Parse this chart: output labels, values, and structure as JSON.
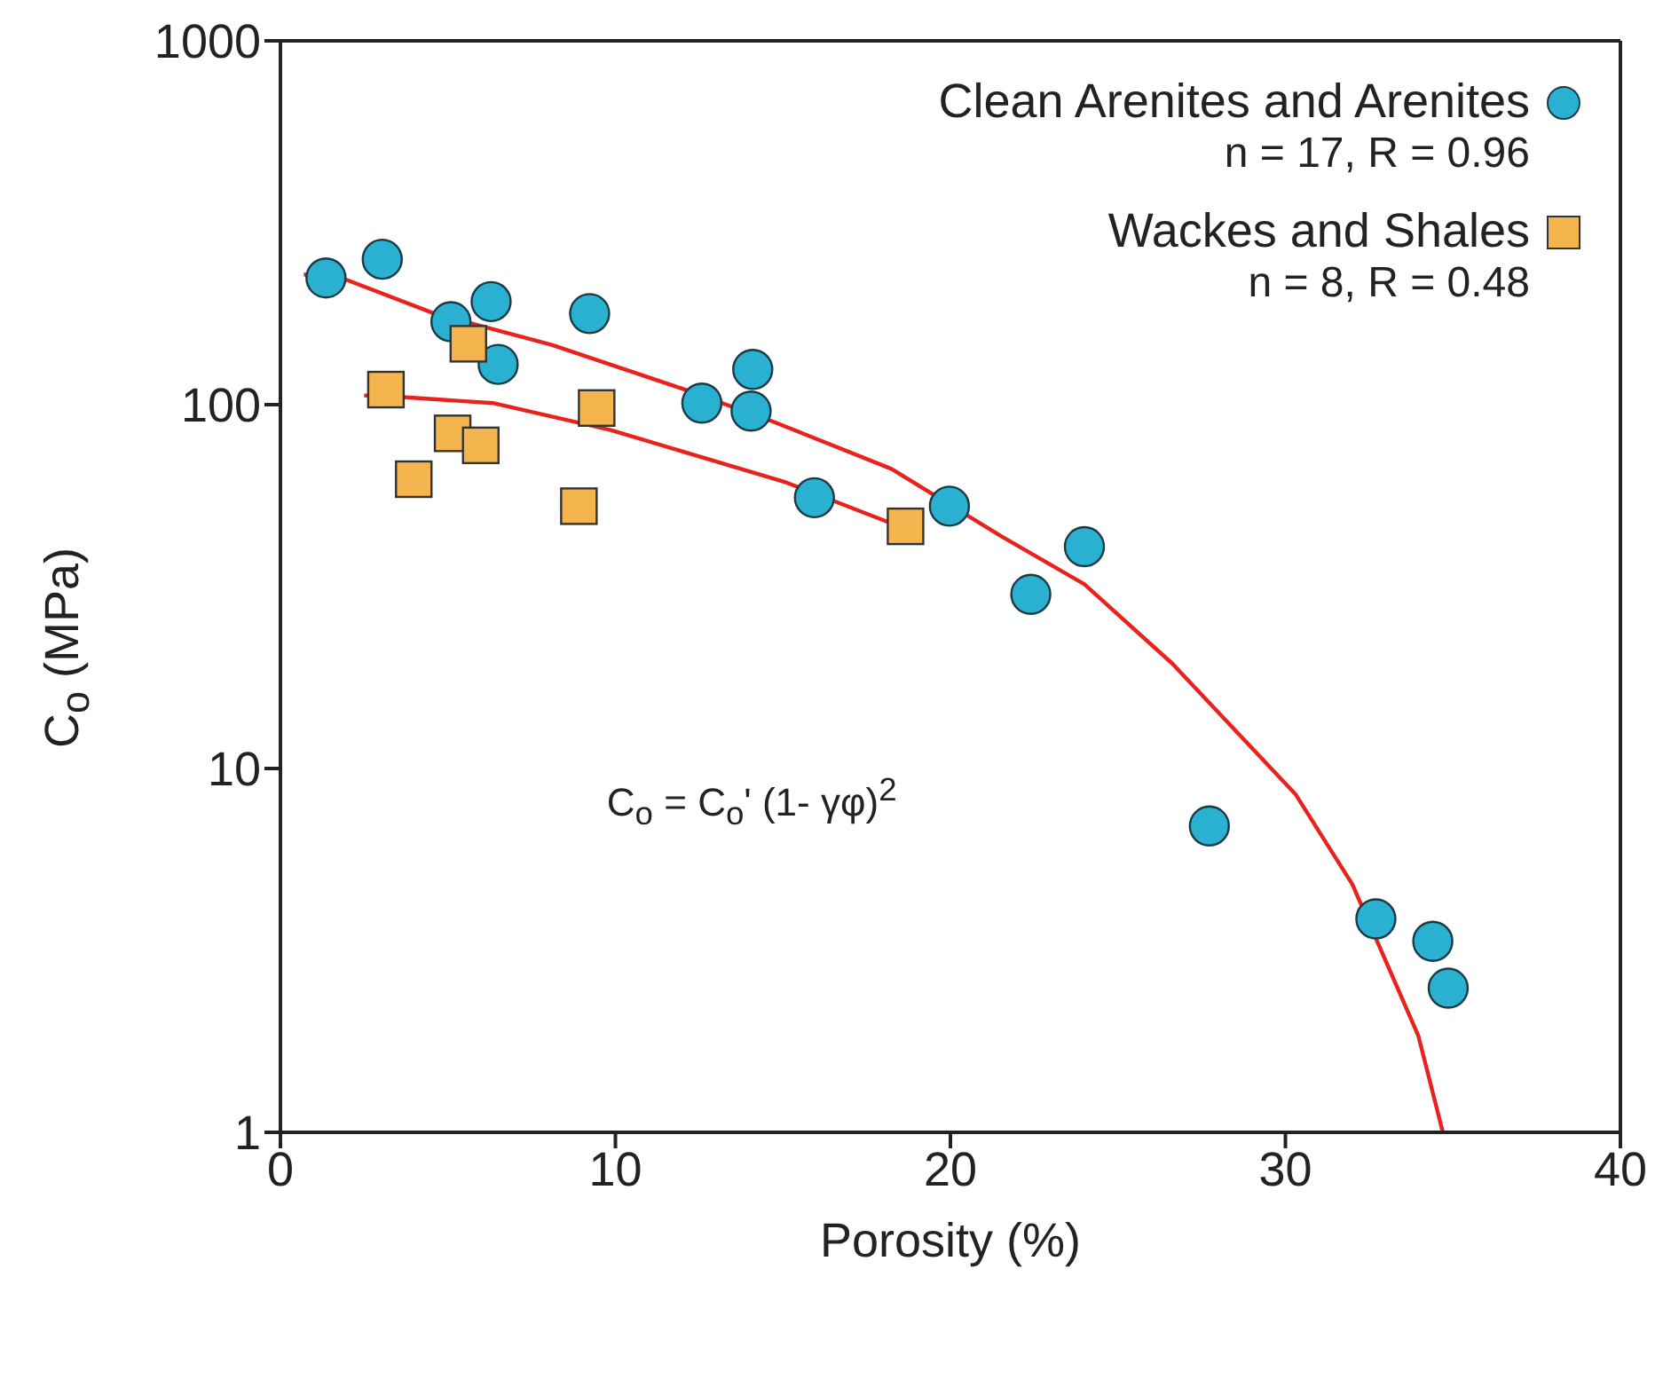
{
  "chart_data": {
    "type": "scatter",
    "xlabel": "Porosity (%)",
    "ylabel": "C$_{o}$ (MPa)",
    "log": "y",
    "xlim": [
      0,
      40
    ],
    "xticks": [
      0,
      10,
      20,
      30,
      40
    ],
    "ylim": [
      1,
      1000
    ],
    "yticks": [
      1,
      10,
      100,
      1000
    ],
    "legend": "top right",
    "annotations": [
      "n = 17, R = 0.96",
      "n = 8, R = 0.48",
      "C$_{o}$ = C$_{o}$' (1- γφ)$^{2}$"
    ],
    "series": [
      {
        "name": "Clean Arenites and Arenites",
        "color": "#2ab0d0",
        "marker": "circle",
        "x": [
          1.36,
          3.04,
          5.09,
          6.29,
          6.5,
          9.23,
          12.58,
          14.1,
          14.05,
          15.94,
          19.97,
          24.0,
          22.4,
          27.73,
          32.7,
          34.4,
          34.86
        ],
        "values": [
          223,
          251,
          169,
          192,
          129,
          178,
          101,
          125,
          96,
          55.5,
          52.6,
          40.7,
          30.1,
          6.95,
          3.86,
          3.35,
          2.49
        ]
      },
      {
        "name": "Wackes and Shales",
        "color": "#f5b54e",
        "marker": "square",
        "x": [
          3.15,
          5.61,
          3.98,
          5.14,
          5.98,
          9.44,
          8.91,
          18.66
        ],
        "values": [
          110,
          147,
          62.4,
          83.4,
          77.3,
          97.9,
          52.6,
          46.3
        ]
      },
      {
        "type": "line",
        "color": "#e8231f",
        "marker": "none",
        "x": [
          0.7,
          1.83,
          4.6,
          8.1,
          11.95,
          14.7,
          18.24,
          21.5,
          24.0,
          26.63,
          30.3,
          32.0,
          33.97,
          34.7
        ],
        "values": [
          228,
          223,
          178,
          146,
          111,
          89.9,
          66.6,
          43.6,
          32.1,
          19.4,
          8.5,
          4.8,
          1.84,
          1
        ]
      },
      {
        "type": "line",
        "color": "#e8231f",
        "marker": "none",
        "x": [
          2.5,
          3.56,
          6.34,
          9.86,
          15.1,
          18.24
        ],
        "values": [
          106,
          105,
          101,
          85.2,
          61.1,
          47.2
        ]
      }
    ]
  }
}
